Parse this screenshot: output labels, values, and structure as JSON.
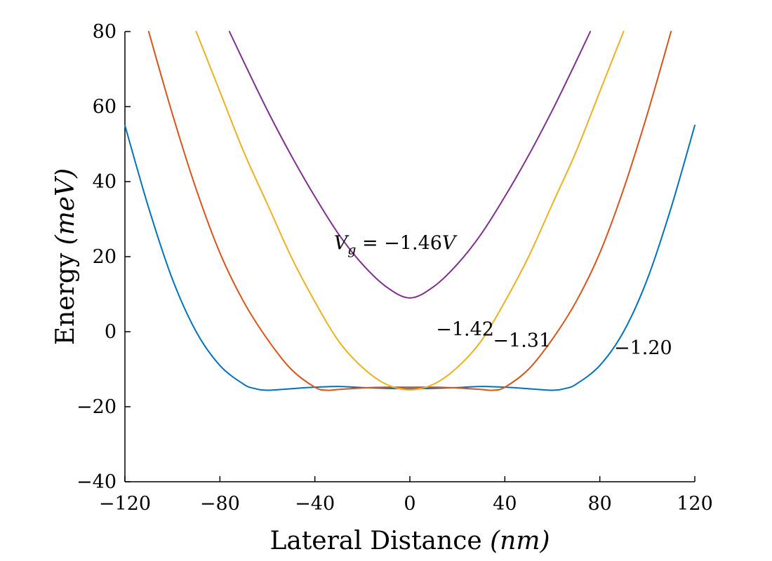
{
  "chart_data": {
    "type": "line",
    "title": "",
    "xlabel": {
      "text": "Lateral Distance ",
      "unit": "(nm)"
    },
    "ylabel": {
      "text": "Energy ",
      "unit": "(meV)"
    },
    "xlim": [
      -120,
      120
    ],
    "ylim": [
      -40,
      80
    ],
    "xticks": [
      -120,
      -80,
      -40,
      0,
      40,
      80,
      120
    ],
    "yticks": [
      -40,
      -20,
      0,
      20,
      40,
      60,
      80
    ],
    "xtick_labels": [
      "−120",
      "−80",
      "−40",
      "0",
      "40",
      "80",
      "120"
    ],
    "ytick_labels": [
      "−40",
      "−20",
      "0",
      "20",
      "40",
      "60",
      "80"
    ],
    "grid": false,
    "series": [
      {
        "name": "-1.20",
        "label": "−1.20",
        "color": "#0072BD",
        "x": [
          -120,
          -110,
          -100,
          -90,
          -80,
          -70,
          -65,
          -60,
          -50,
          -40,
          -30,
          -20,
          -10,
          0,
          10,
          20,
          30,
          40,
          50,
          60,
          65,
          70,
          80,
          90,
          100,
          110,
          120
        ],
        "y": [
          55,
          33,
          14,
          0,
          -9,
          -14,
          -15.2,
          -15.6,
          -15.2,
          -14.8,
          -14.6,
          -14.9,
          -15.1,
          -15.2,
          -15.1,
          -14.9,
          -14.6,
          -14.8,
          -15.2,
          -15.6,
          -15.2,
          -14,
          -9,
          0,
          14,
          33,
          55
        ]
      },
      {
        "name": "-1.31",
        "label": "−1.31",
        "color": "#D95319",
        "x": [
          -110,
          -100,
          -90,
          -80,
          -70,
          -60,
          -50,
          -40,
          -35,
          -30,
          -20,
          -10,
          0,
          10,
          20,
          30,
          35,
          40,
          50,
          60,
          70,
          80,
          90,
          100,
          110
        ],
        "y": [
          80,
          58,
          38,
          21,
          8,
          -2,
          -10,
          -14.8,
          -15.6,
          -15.4,
          -15,
          -14.8,
          -14.8,
          -14.8,
          -15,
          -15.4,
          -15.6,
          -14.8,
          -10,
          -2,
          8,
          21,
          38,
          58,
          80
        ]
      },
      {
        "name": "-1.42",
        "label": "−1.42",
        "color": "#EDB120",
        "x": [
          -90,
          -80,
          -70,
          -60,
          -50,
          -40,
          -30,
          -20,
          -10,
          0,
          10,
          20,
          30,
          40,
          50,
          60,
          70,
          80,
          90
        ],
        "y": [
          80,
          64,
          48,
          34,
          20,
          8,
          -2.5,
          -9.5,
          -14,
          -15.5,
          -14,
          -9.5,
          -2.5,
          8,
          20,
          34,
          48,
          64,
          80
        ]
      },
      {
        "name": "-1.46",
        "label": "V_g = −1.46V",
        "color": "#7E2F8E",
        "x": [
          -76,
          -70,
          -60,
          -50,
          -40,
          -30,
          -20,
          -10,
          0,
          10,
          20,
          30,
          40,
          50,
          60,
          70,
          76
        ],
        "y": [
          80,
          72,
          59,
          47,
          36,
          26,
          18,
          12,
          9,
          12,
          18,
          26,
          36,
          47,
          59,
          72,
          80
        ]
      }
    ],
    "annotations": [
      {
        "id": "vg",
        "math_v": "V",
        "math_sub": "g",
        "text": " = −1.46",
        "unit": "V",
        "x": -32,
        "y": 22
      },
      {
        "id": "l142",
        "text": "−1.42",
        "x": 11,
        "y": -1
      },
      {
        "id": "l131",
        "text": "−1.31",
        "x": 35,
        "y": -4
      },
      {
        "id": "l120",
        "text": "−1.20",
        "x": 86,
        "y": -6
      }
    ]
  }
}
